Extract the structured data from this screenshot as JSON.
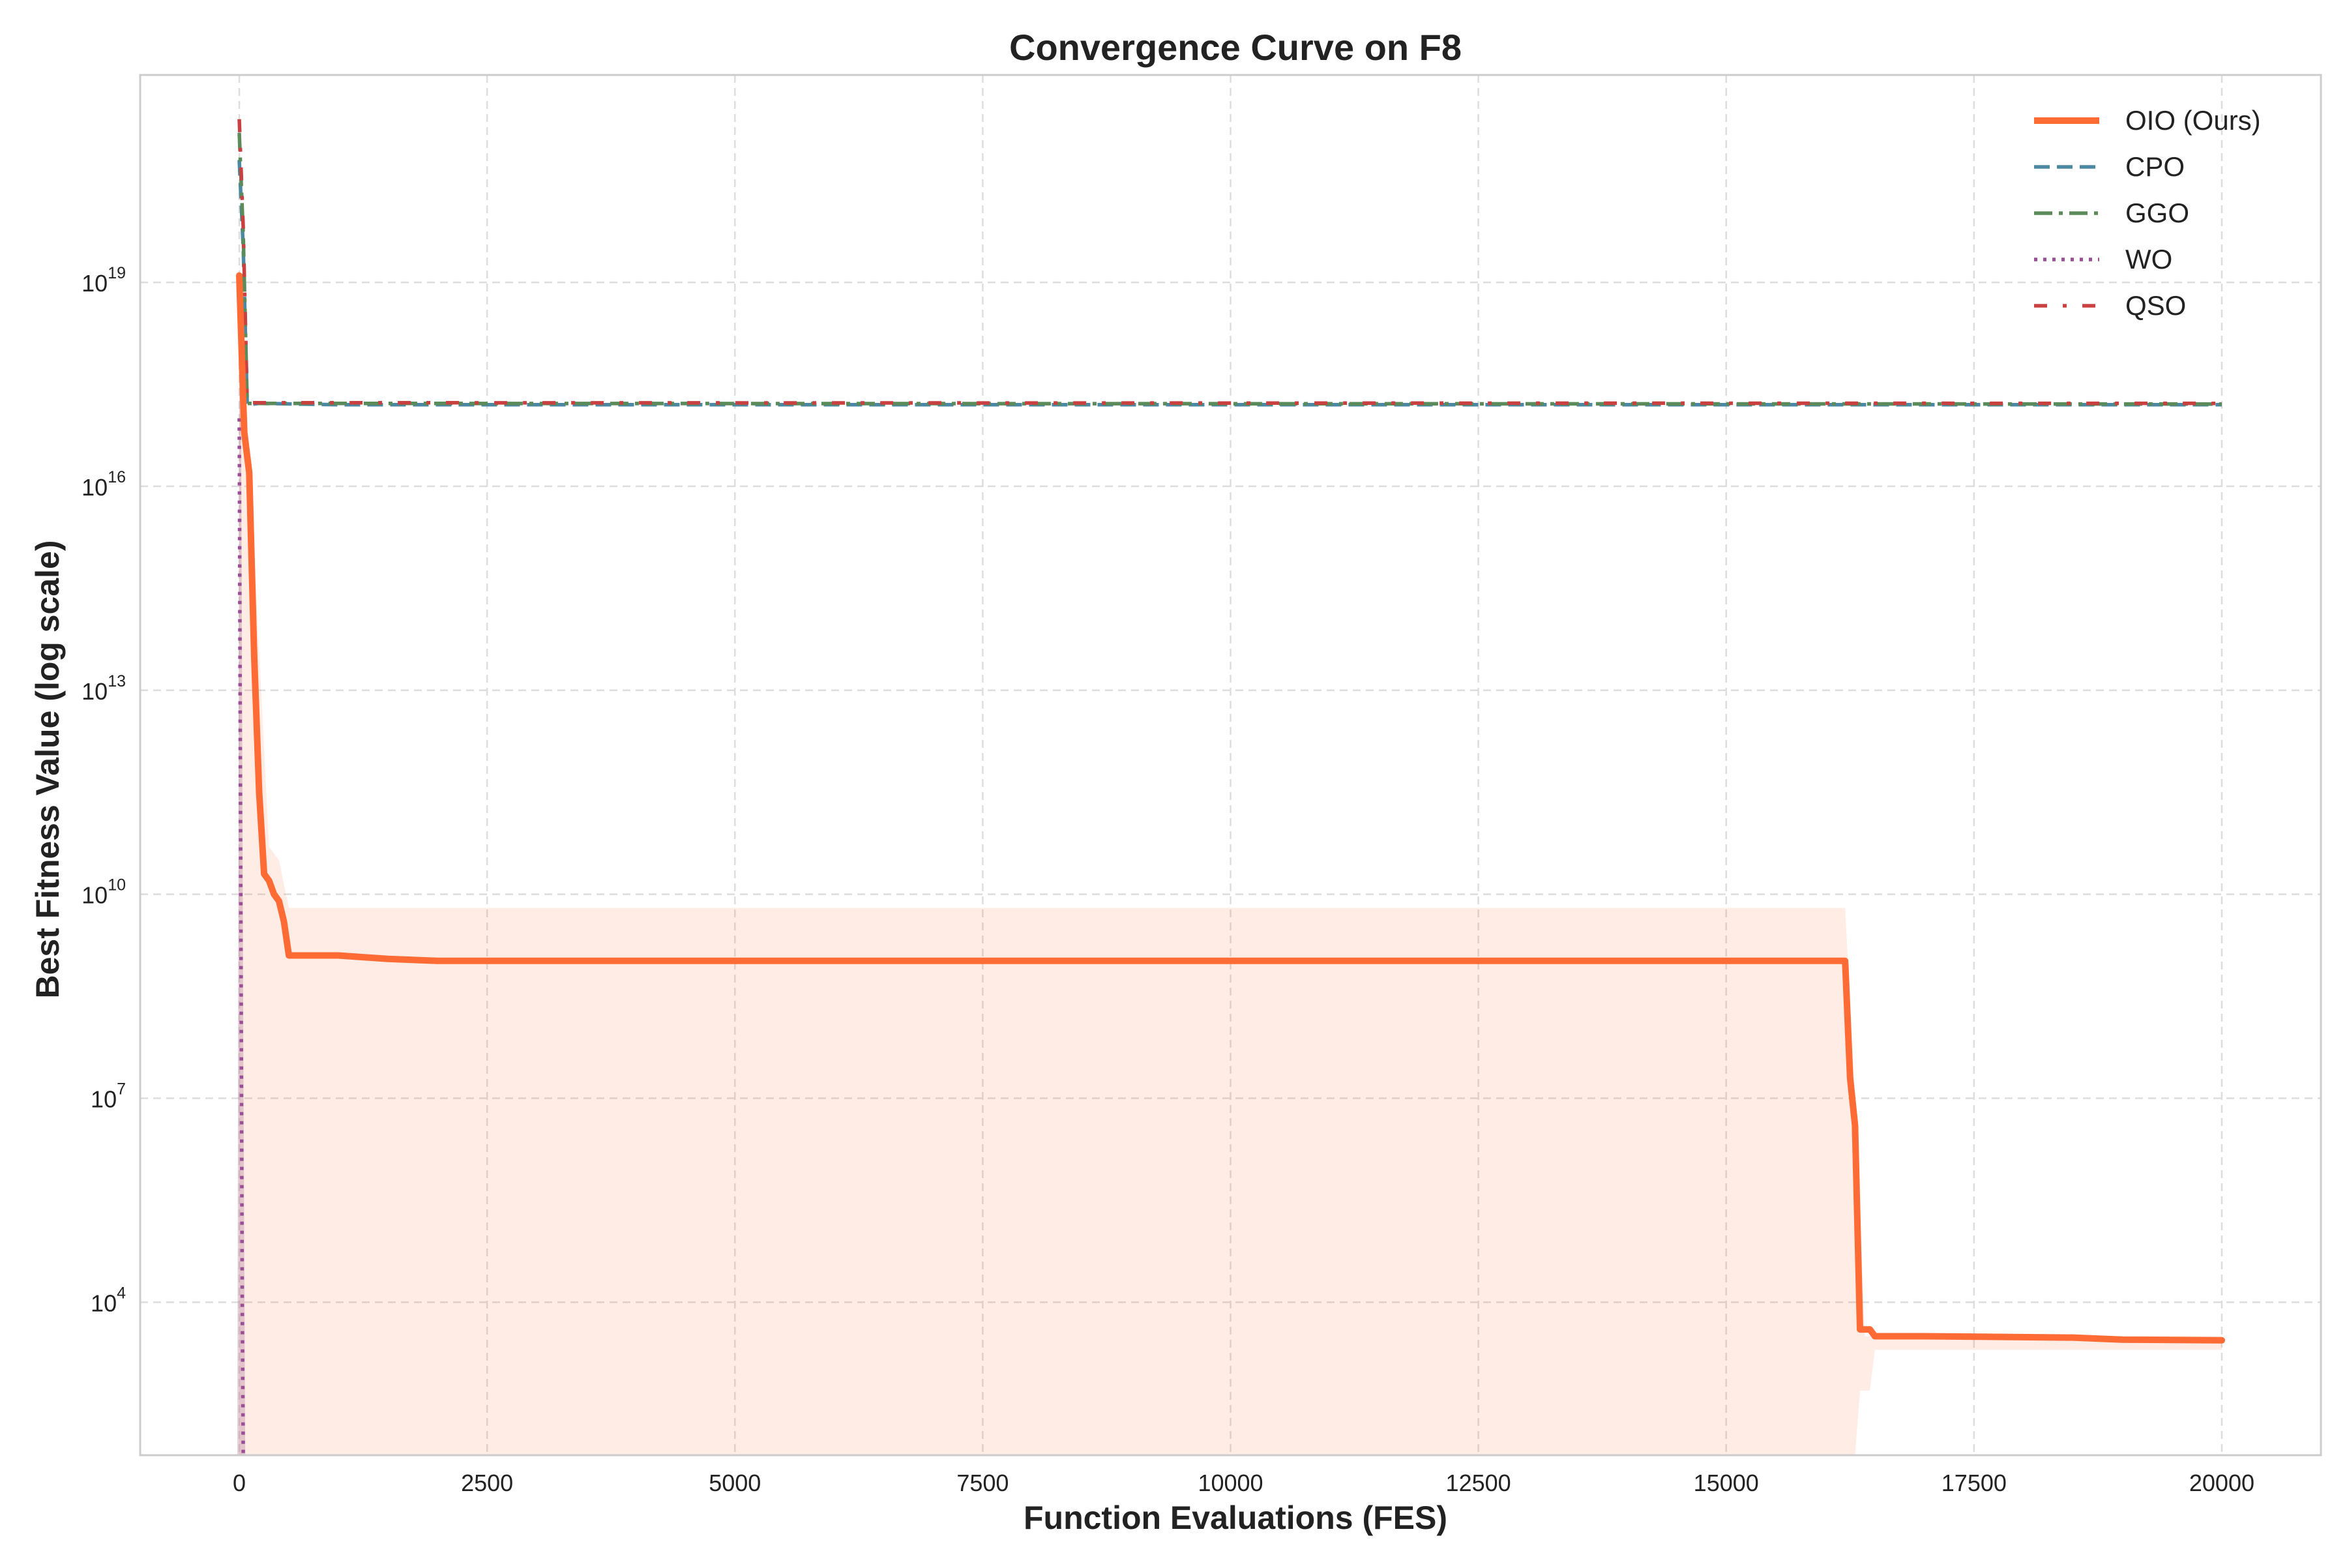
{
  "chart_data": {
    "type": "line",
    "title": "Convergence Curve on F8",
    "xlabel": "Function Evaluations (FES)",
    "ylabel": "Best Fitness Value (log scale)",
    "yscale": "log",
    "xlim": [
      -1000,
      21000
    ],
    "ylim_log10": [
      1.75,
      22.05
    ],
    "grid": true,
    "legend_loc": "upper right",
    "x_ticks": [
      0,
      2500,
      5000,
      7500,
      10000,
      12500,
      15000,
      17500,
      20000
    ],
    "x_tick_labels": [
      "0",
      "2500",
      "5000",
      "7500",
      "10000",
      "12500",
      "15000",
      "17500",
      "20000"
    ],
    "y_ticks": [
      {
        "base": "10",
        "exp": "4",
        "log10": 4
      },
      {
        "base": "10",
        "exp": "7",
        "log10": 7
      },
      {
        "base": "10",
        "exp": "10",
        "log10": 10
      },
      {
        "base": "10",
        "exp": "13",
        "log10": 13
      },
      {
        "base": "10",
        "exp": "16",
        "log10": 16
      },
      {
        "base": "10",
        "exp": "19",
        "log10": 19
      }
    ],
    "series": [
      {
        "name": "OIO (Ours)",
        "color": "#ff6b35",
        "style": "solid",
        "points_log10": [
          [
            0,
            19.1
          ],
          [
            50,
            16.8
          ],
          [
            100,
            16.2
          ],
          [
            150,
            13.5
          ],
          [
            200,
            11.5
          ],
          [
            250,
            10.3
          ],
          [
            300,
            10.2
          ],
          [
            350,
            10.0
          ],
          [
            400,
            9.9
          ],
          [
            450,
            9.6
          ],
          [
            500,
            9.1
          ],
          [
            1000,
            9.1
          ],
          [
            1200,
            9.08
          ],
          [
            1500,
            9.05
          ],
          [
            2000,
            9.02
          ],
          [
            3000,
            9.02
          ],
          [
            10000,
            9.02
          ],
          [
            16000,
            9.02
          ],
          [
            16200,
            9.02
          ],
          [
            16250,
            7.3
          ],
          [
            16300,
            6.6
          ],
          [
            16350,
            3.6
          ],
          [
            16450,
            3.6
          ],
          [
            16500,
            3.5
          ],
          [
            17000,
            3.5
          ],
          [
            18500,
            3.48
          ],
          [
            19000,
            3.45
          ],
          [
            20000,
            3.44
          ]
        ],
        "band_upper_log10": [
          [
            0,
            19.3
          ],
          [
            300,
            10.7
          ],
          [
            400,
            10.5
          ],
          [
            500,
            9.8
          ],
          [
            16200,
            9.8
          ],
          [
            16300,
            7.0
          ],
          [
            16400,
            3.5
          ],
          [
            20000,
            3.5
          ]
        ],
        "band_lower_log10": [
          [
            0,
            1.75
          ],
          [
            16300,
            1.75
          ],
          [
            16350,
            2.7
          ],
          [
            16450,
            2.7
          ],
          [
            16500,
            3.3
          ],
          [
            20000,
            3.3
          ]
        ]
      },
      {
        "name": "CPO",
        "color": "#4a88a4",
        "style": "dashed",
        "points_log10": [
          [
            0,
            20.8
          ],
          [
            40,
            19.5
          ],
          [
            80,
            17.2
          ],
          [
            200,
            17.22
          ],
          [
            1000,
            17.2
          ],
          [
            20000,
            17.2
          ]
        ]
      },
      {
        "name": "GGO",
        "color": "#5b8a5b",
        "style": "dashdot",
        "points_log10": [
          [
            0,
            21.2
          ],
          [
            40,
            19.7
          ],
          [
            80,
            17.22
          ],
          [
            20000,
            17.21
          ]
        ]
      },
      {
        "name": "WO",
        "color": "#9b4d96",
        "style": "dotted",
        "points_log10": [
          [
            0,
            17.0
          ],
          [
            10,
            12.0
          ],
          [
            20,
            8.0
          ],
          [
            30,
            4.0
          ],
          [
            40,
            1.75
          ]
        ]
      },
      {
        "name": "QSO",
        "color": "#c94040",
        "style": "dashdotdot",
        "points_log10": [
          [
            0,
            21.4
          ],
          [
            40,
            19.8
          ],
          [
            80,
            17.23
          ],
          [
            20000,
            17.22
          ]
        ]
      }
    ],
    "spike_band_log10": {
      "x": [
        -20,
        0,
        20,
        40,
        60
      ],
      "upper": [
        1.75,
        17.5,
        16.5,
        8.0,
        1.75
      ]
    }
  }
}
